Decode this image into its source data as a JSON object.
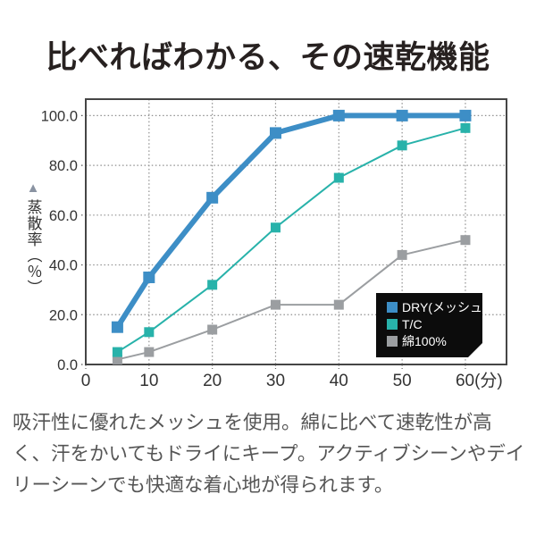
{
  "title": "比べればわかる、その速乾機能",
  "description": {
    "lines": [
      "吸汗性に優れたメッシュを使用。綿に比べて速乾性が高",
      "く、汗をかいてもドライにキープ。アクティブシーンやデイ",
      "リーシーンでも快適な着心地が得られます。"
    ]
  },
  "chart_data": {
    "type": "line",
    "title": "比べればわかる、その速乾機能",
    "ylabel": "蒸散率（％）",
    "ylabel_pointer": "▲",
    "ylabel_pointer_color": "#8a93a2",
    "xunit": "(分)",
    "x": [
      5,
      10,
      20,
      30,
      40,
      50,
      60
    ],
    "series": [
      {
        "key": "dry-mesh",
        "name": "DRY(メッシュ)",
        "color": "#3d8ec6",
        "line_width": 6,
        "marker_size": 13,
        "values": [
          15,
          35,
          67,
          93,
          100,
          100,
          100
        ]
      },
      {
        "key": "tc",
        "name": "T/C",
        "color": "#28b2aa",
        "line_width": 2,
        "marker_size": 11,
        "values": [
          5,
          13,
          32,
          55,
          75,
          88,
          95
        ]
      },
      {
        "key": "cotton-100",
        "name": "綿100%",
        "color": "#9b9ea1",
        "line_width": 2,
        "marker_size": 11,
        "values": [
          2,
          5,
          14,
          24,
          24,
          44,
          50
        ]
      }
    ],
    "xticks": {
      "values": [
        0,
        10,
        20,
        30,
        40,
        50,
        60
      ],
      "labels": [
        "0",
        "10",
        "20",
        "30",
        "40",
        "50",
        "60(分)"
      ]
    },
    "yticks": {
      "values": [
        0,
        20,
        40,
        60,
        80,
        100
      ],
      "labels": [
        "0.0",
        "20.0",
        "40.0",
        "60.0",
        "80.0",
        "100.0"
      ]
    },
    "xlim": [
      0,
      66.5
    ],
    "ylim": [
      0,
      106.6
    ],
    "grid": "dotted",
    "grid_color": "#8f8f8f",
    "axis_color": "#454545",
    "legend": {
      "position": "bottom-right",
      "bg": "#0c0c0c",
      "text_color": "#ffffff"
    }
  }
}
